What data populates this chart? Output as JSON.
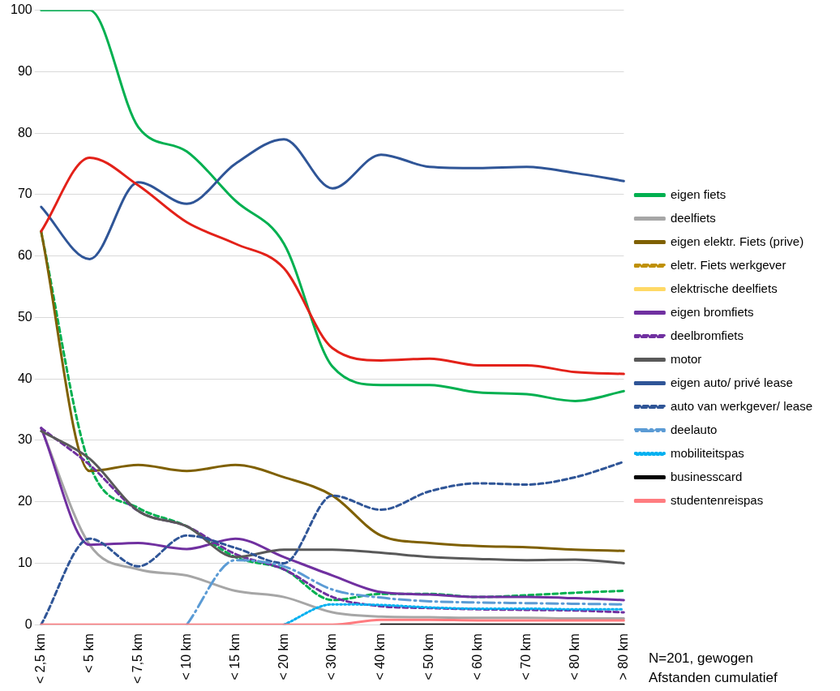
{
  "chart_data": {
    "type": "line",
    "categories": [
      "< 2,5 km",
      "< 5 km",
      "< 7,5 km",
      "< 10 km",
      "< 15 km",
      "< 20 km",
      "< 30 km",
      "< 40 km",
      "< 50 km",
      "< 60 km",
      "< 70 km",
      "< 80 km",
      "> 80 km"
    ],
    "ylim": [
      0,
      100
    ],
    "yticks": [
      0,
      10,
      20,
      30,
      40,
      50,
      60,
      70,
      80,
      90,
      100
    ],
    "grid": "y",
    "legend": "right",
    "marker": "none",
    "annotations": [
      "N=201, gewogen",
      "Afstanden cumulatief"
    ],
    "series": [
      {
        "name": "eigen fiets",
        "color": "#00b050",
        "values": [
          100,
          100,
          81,
          77,
          69,
          62,
          42,
          39,
          39,
          37.8,
          37.5,
          36.4,
          38
        ]
      },
      {
        "color": "#00b050",
        "line_style": "dashed",
        "values": [
          64,
          26,
          19,
          16,
          11,
          9,
          4,
          5,
          5,
          4.5,
          4.8,
          5.2,
          5.5
        ]
      },
      {
        "name": "deelfiets",
        "color": "#a6a6a6",
        "values": [
          32,
          13,
          9,
          8,
          5.5,
          4.5,
          2,
          1.3,
          1.2,
          1.1,
          1.1,
          1,
          1
        ]
      },
      {
        "name": "eigen elektr. Fiets (prive)",
        "color": "#7f6000",
        "values": [
          64,
          25,
          26,
          25,
          26,
          24,
          21,
          14.5,
          13.3,
          12.8,
          12.6,
          12.2,
          12
        ]
      },
      {
        "name": "eletr. Fiets werkgever",
        "color": "#bf9000",
        "line_style": "dashed",
        "values": [
          null,
          null,
          null,
          null,
          null,
          null,
          null,
          null,
          null,
          null,
          null,
          null,
          null
        ]
      },
      {
        "name": "elektrische deelfiets",
        "color": "#ffd966",
        "values": [
          null,
          null,
          null,
          null,
          null,
          null,
          null,
          null,
          null,
          null,
          null,
          null,
          null
        ]
      },
      {
        "name": "eigen bromfiets",
        "color": "#7030a0",
        "values": [
          32,
          13,
          13.3,
          12.3,
          14,
          11,
          8,
          5.3,
          4.9,
          4.5,
          4.5,
          4.3,
          4
        ]
      },
      {
        "name": "deelbromfiets",
        "color": "#7030a0",
        "line_style": "dashed",
        "values": [
          32,
          26,
          18.5,
          16,
          11.5,
          9,
          4.5,
          3,
          2.7,
          2.5,
          2.4,
          2.3,
          2
        ]
      },
      {
        "name": "motor",
        "color": "#595959",
        "values": [
          31.5,
          27,
          18.5,
          16,
          11,
          12.2,
          12.2,
          11.7,
          11,
          10.7,
          10.5,
          10.6,
          10
        ]
      },
      {
        "name": "eigen auto/ privé lease",
        "color": "#2f5597",
        "values": [
          68,
          59.5,
          72,
          68.5,
          75,
          79,
          71,
          76.5,
          74.5,
          74.3,
          74.5,
          73.5,
          72.2
        ]
      },
      {
        "name": "auto van werkgever/ lease",
        "color": "#2f5597",
        "line_style": "dashed",
        "values": [
          0,
          14,
          9.5,
          14.5,
          12.5,
          10,
          21,
          18.7,
          21.7,
          23,
          22.8,
          24,
          26.5
        ]
      },
      {
        "name": "deelauto",
        "color": "#5b9bd5",
        "line_style": "dashdot",
        "values": [
          null,
          null,
          null,
          0,
          10.5,
          9.5,
          5.7,
          4.4,
          3.8,
          3.6,
          3.5,
          3.4,
          3.3
        ]
      },
      {
        "name": "mobiliteitspas",
        "color": "#00b0f0",
        "line_style": "dotted",
        "values": [
          null,
          null,
          null,
          null,
          null,
          0,
          3.3,
          3.2,
          2.8,
          2.6,
          2.6,
          2.5,
          2.5
        ]
      },
      {
        "color": "#e32119",
        "values": [
          64,
          76,
          71.5,
          65.5,
          62,
          58,
          45,
          43,
          43.3,
          42.2,
          42.2,
          41.1,
          40.8
        ]
      },
      {
        "name": "businesscard",
        "color": "#000000",
        "values": [
          null,
          null,
          null,
          null,
          null,
          null,
          null,
          0,
          0,
          0,
          0,
          0,
          0
        ]
      },
      {
        "name": "studentenreispas",
        "color": "#ff7c80",
        "values": [
          0,
          0,
          0,
          0,
          0,
          0,
          0,
          0.8,
          0.8,
          0.7,
          0.7,
          0.7,
          0.7
        ]
      }
    ]
  }
}
